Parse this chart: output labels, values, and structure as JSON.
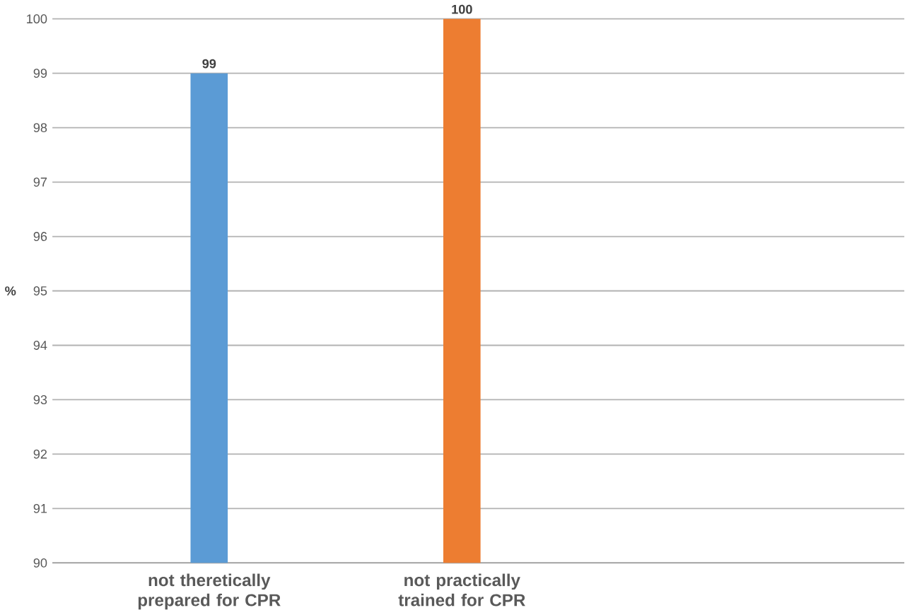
{
  "chart_data": {
    "type": "bar",
    "ylabel": "%",
    "categories": [
      "not theretically prepared for CPR",
      "not practically trained for CPR"
    ],
    "values": [
      99,
      100
    ],
    "colors": [
      "#5b9bd5",
      "#ed7d31"
    ],
    "ylim": [
      90,
      100
    ],
    "yticks": [
      90,
      91,
      92,
      93,
      94,
      95,
      96,
      97,
      98,
      99,
      100
    ],
    "grid": "y",
    "data_labels": true
  }
}
